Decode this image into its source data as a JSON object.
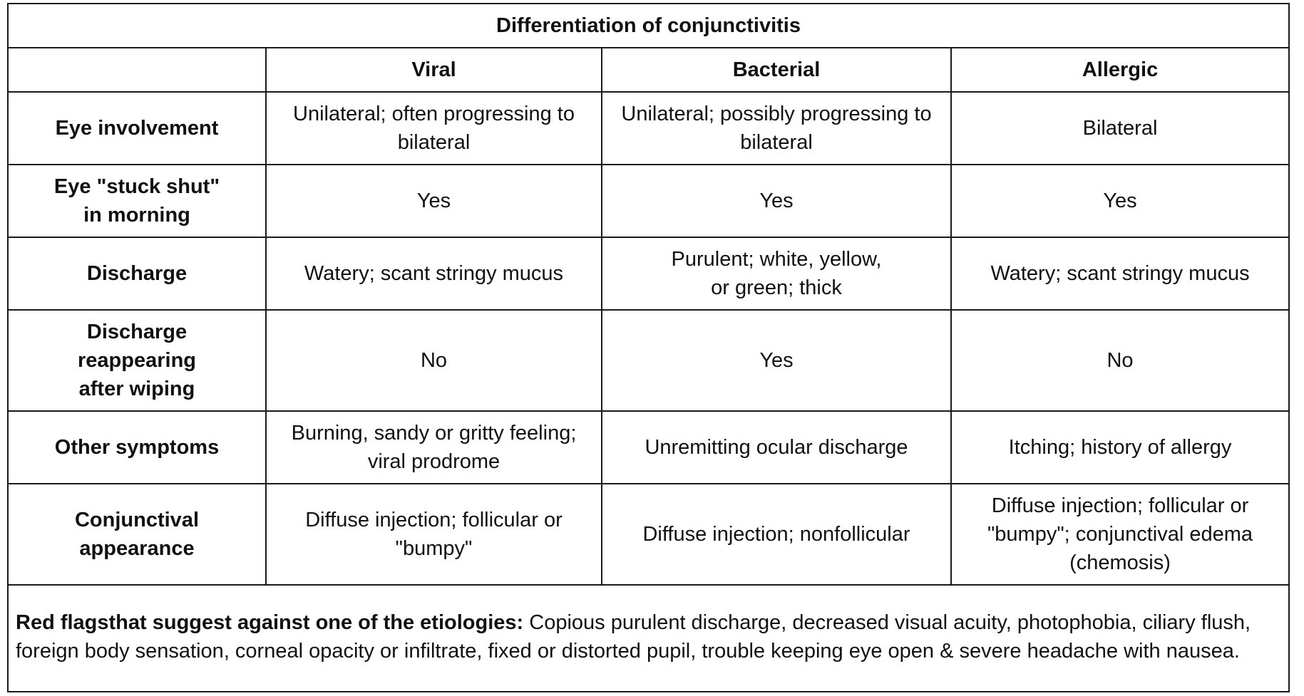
{
  "title": "Differentiation of conjunctivitis",
  "columns": [
    "",
    "Viral",
    "Bacterial",
    "Allergic"
  ],
  "rows": [
    {
      "label": "Eye involvement",
      "viral": "Unilateral; often progressing to bilateral",
      "bacterial": "Unilateral; possibly progressing to bilateral",
      "allergic": "Bilateral"
    },
    {
      "label": "Eye \"stuck shut\" in morning",
      "viral": "Yes",
      "bacterial": "Yes",
      "allergic": "Yes"
    },
    {
      "label": "Discharge",
      "viral": "Watery; scant stringy mucus",
      "bacterial": "Purulent; white, yellow,\nor green; thick",
      "allergic": "Watery; scant stringy mucus"
    },
    {
      "label": "Discharge reappearing after wiping",
      "viral": "No",
      "bacterial": "Yes",
      "allergic": "No"
    },
    {
      "label": "Other symptoms",
      "viral": "Burning, sandy or gritty feeling; viral prodrome",
      "bacterial": "Unremitting ocular discharge",
      "allergic": "Itching; history of allergy"
    },
    {
      "label": "Conjunctival appearance",
      "viral": "Diffuse injection; follicular or \"bumpy\"",
      "bacterial": "Diffuse injection; nonfollicular",
      "allergic": "Diffuse injection; follicular or \"bumpy\"; conjunctival edema (chemosis)"
    }
  ],
  "footer": {
    "label": "Red flagsthat suggest against one of the etiologies:",
    "text": " Copious purulent discharge, decreased visual acuity, photophobia, ciliary flush, foreign body sensation, corneal opacity or infiltrate, fixed or distorted pupil, trouble keeping eye open & severe headache with nausea."
  }
}
